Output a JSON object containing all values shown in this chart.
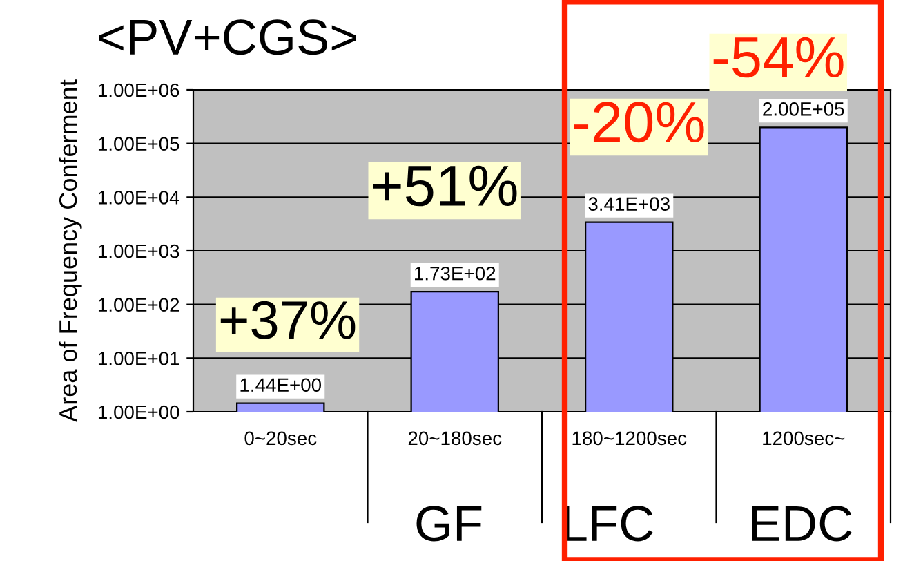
{
  "chart_data": {
    "type": "bar",
    "title": "<PV+CGS>",
    "ylabel": "Area of Frequency Conferment",
    "categories": [
      "0~20sec",
      "20~180sec",
      "180~1200sec",
      "1200sec~"
    ],
    "values": [
      1.44,
      173,
      3410,
      200000
    ],
    "value_labels": [
      "1.44E+00",
      "1.73E+02",
      "3.41E+03",
      "2.00E+05"
    ],
    "color": "#9999ff",
    "log": true,
    "ylim": [
      1,
      1000000
    ],
    "yticks": [
      {
        "value": 1,
        "label": "1.00E+00"
      },
      {
        "value": 10,
        "label": "1.00E+01"
      },
      {
        "value": 100,
        "label": "1.00E+02"
      },
      {
        "value": 1000,
        "label": "1.00E+03"
      },
      {
        "value": 10000,
        "label": "1.00E+04"
      },
      {
        "value": 100000,
        "label": "1.00E+05"
      },
      {
        "value": 1000000,
        "label": "1.00E+06"
      }
    ],
    "grid": "y",
    "annotations": [
      "+37%",
      "+51%",
      "-20%",
      "-54%",
      "GF",
      "LFC",
      "EDC"
    ]
  }
}
